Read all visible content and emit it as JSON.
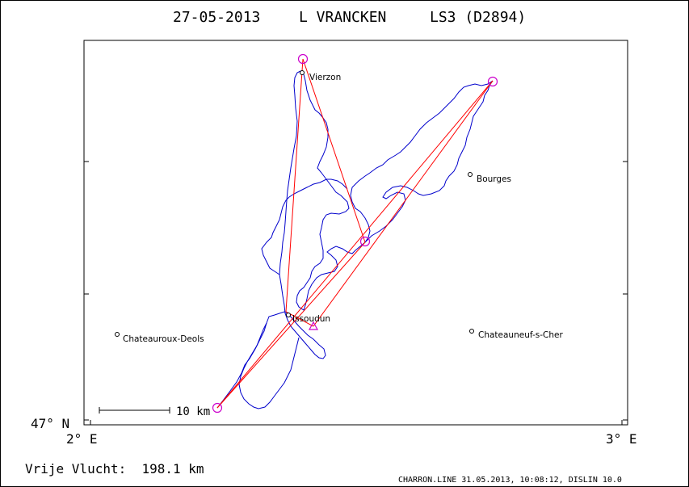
{
  "title": {
    "date": "27-05-2013",
    "pilot": "L VRANCKEN",
    "glider": "LS3 (D2894)"
  },
  "axes": {
    "lat_label": "47° N",
    "lon_start_label": "2° E",
    "lon_end_label": "3° E"
  },
  "scale_bar": {
    "label": "10 km"
  },
  "places": [
    {
      "name": "Vierzon"
    },
    {
      "name": "Bourges"
    },
    {
      "name": "Issoudun"
    },
    {
      "name": "Chateauroux-Deols"
    },
    {
      "name": "Chateauneuf-s-Cher"
    }
  ],
  "footer": {
    "distance": "Vrije Vlucht:  198.1 km",
    "credit": "CHARRON.LINE 31.05.2013, 10:08:12, DISLIN 10.0"
  },
  "colors": {
    "track": "#0000cc",
    "task": "#ff0000",
    "turnpoint": "#cc00cc",
    "frame": "#000000"
  }
}
